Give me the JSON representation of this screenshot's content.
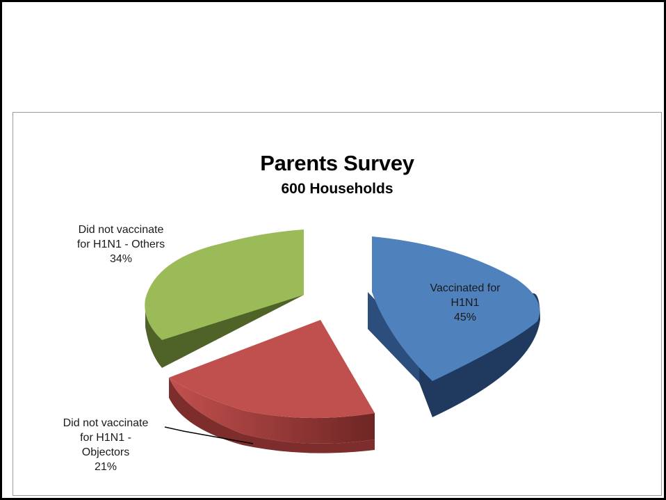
{
  "chart_data": {
    "type": "pie",
    "style": "3d-exploded",
    "title": "Parents Survey",
    "subtitle": "600 Households",
    "slices": [
      {
        "label_lines": [
          "Vaccinated for",
          "H1N1"
        ],
        "pct_text": "45%",
        "value": 45,
        "color": "#4F81BD"
      },
      {
        "label_lines": [
          "Did not vaccinate",
          "for H1N1 -",
          "Objectors"
        ],
        "pct_text": "21%",
        "value": 21,
        "color": "#C0504D"
      },
      {
        "label_lines": [
          "Did not vaccinate",
          "for H1N1 - Others"
        ],
        "pct_text": "34%",
        "value": 34,
        "color": "#9BBB59"
      }
    ]
  }
}
